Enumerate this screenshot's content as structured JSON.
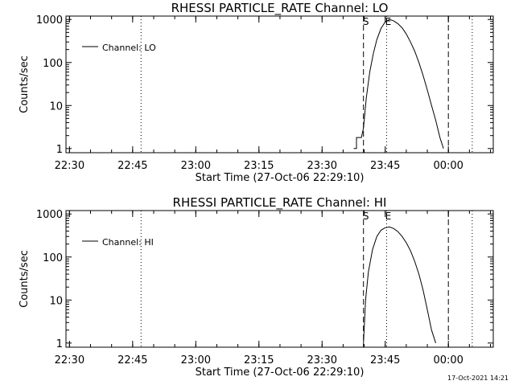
{
  "footer_timestamp": "17-Oct-2021 14:21",
  "chart_data": [
    {
      "type": "line",
      "title": "RHESSI PARTICLE_RATE Channel: LO",
      "xlabel": "Start Time (27-Oct-06 22:29:10)",
      "ylabel": "Counts/sec",
      "ylog": true,
      "ylim": [
        0.8,
        1200
      ],
      "xlim": [
        "22:29:10",
        "00:10:40"
      ],
      "x_ticks": [
        "22:30",
        "22:45",
        "23:00",
        "23:15",
        "23:30",
        "23:45",
        "00:00"
      ],
      "y_ticks": [
        "1",
        "10",
        "100",
        "1000"
      ],
      "legend": {
        "label": "Channel: LO",
        "position": "top-left"
      },
      "markers": [
        {
          "label": "S",
          "time": "23:39:50",
          "style": "dashed"
        },
        {
          "label": "E",
          "time": "23:45:20",
          "style": "dotted"
        }
      ],
      "vlines": [
        {
          "time": "22:47:00",
          "style": "dotted"
        },
        {
          "time": "00:00:00",
          "style": "dashed"
        },
        {
          "time": "00:05:40",
          "style": "dotted"
        }
      ],
      "series": [
        {
          "name": "Channel: LO",
          "x": [
            "23:37:30",
            "23:38:10",
            "23:38:10",
            "23:39:20",
            "23:39:50",
            "23:40:30",
            "23:41:20",
            "23:42:10",
            "23:43:00",
            "23:44:00",
            "23:45:00",
            "23:46:00",
            "23:47:00",
            "23:48:00",
            "23:49:00",
            "23:50:00",
            "23:51:00",
            "23:52:00",
            "23:53:00",
            "23:54:00",
            "23:55:00",
            "23:56:00",
            "23:57:00",
            "23:58:00",
            "23:58:50"
          ],
          "values": [
            1,
            1,
            1.8,
            1.8,
            3,
            15,
            60,
            160,
            340,
            620,
            880,
            1000,
            930,
            800,
            640,
            460,
            300,
            185,
            100,
            50,
            23,
            10,
            4.5,
            1.8,
            1
          ]
        }
      ]
    },
    {
      "type": "line",
      "title": "RHESSI PARTICLE_RATE Channel: HI",
      "xlabel": "Start Time (27-Oct-06 22:29:10)",
      "ylabel": "Counts/sec",
      "ylog": true,
      "ylim": [
        0.8,
        1200
      ],
      "xlim": [
        "22:29:10",
        "00:10:40"
      ],
      "x_ticks": [
        "22:30",
        "22:45",
        "23:00",
        "23:15",
        "23:30",
        "23:45",
        "00:00"
      ],
      "y_ticks": [
        "1",
        "10",
        "100",
        "1000"
      ],
      "legend": {
        "label": "Channel: HI",
        "position": "top-left"
      },
      "markers": [
        {
          "label": "S",
          "time": "23:39:50",
          "style": "dashed"
        },
        {
          "label": "E",
          "time": "23:45:20",
          "style": "dotted"
        }
      ],
      "vlines": [
        {
          "time": "22:47:00",
          "style": "dotted"
        },
        {
          "time": "00:00:00",
          "style": "dashed"
        },
        {
          "time": "00:05:40",
          "style": "dotted"
        }
      ],
      "series": [
        {
          "name": "Channel: HI",
          "x": [
            "23:39:50",
            "23:40:20",
            "23:41:00",
            "23:42:00",
            "23:43:00",
            "23:44:00",
            "23:45:00",
            "23:46:00",
            "23:47:00",
            "23:48:00",
            "23:49:00",
            "23:50:00",
            "23:51:00",
            "23:52:00",
            "23:53:00",
            "23:54:00",
            "23:55:00",
            "23:56:00",
            "23:57:00"
          ],
          "values": [
            1,
            10,
            45,
            150,
            300,
            420,
            480,
            500,
            460,
            390,
            300,
            215,
            140,
            80,
            40,
            17,
            6,
            2,
            1
          ]
        }
      ]
    }
  ]
}
